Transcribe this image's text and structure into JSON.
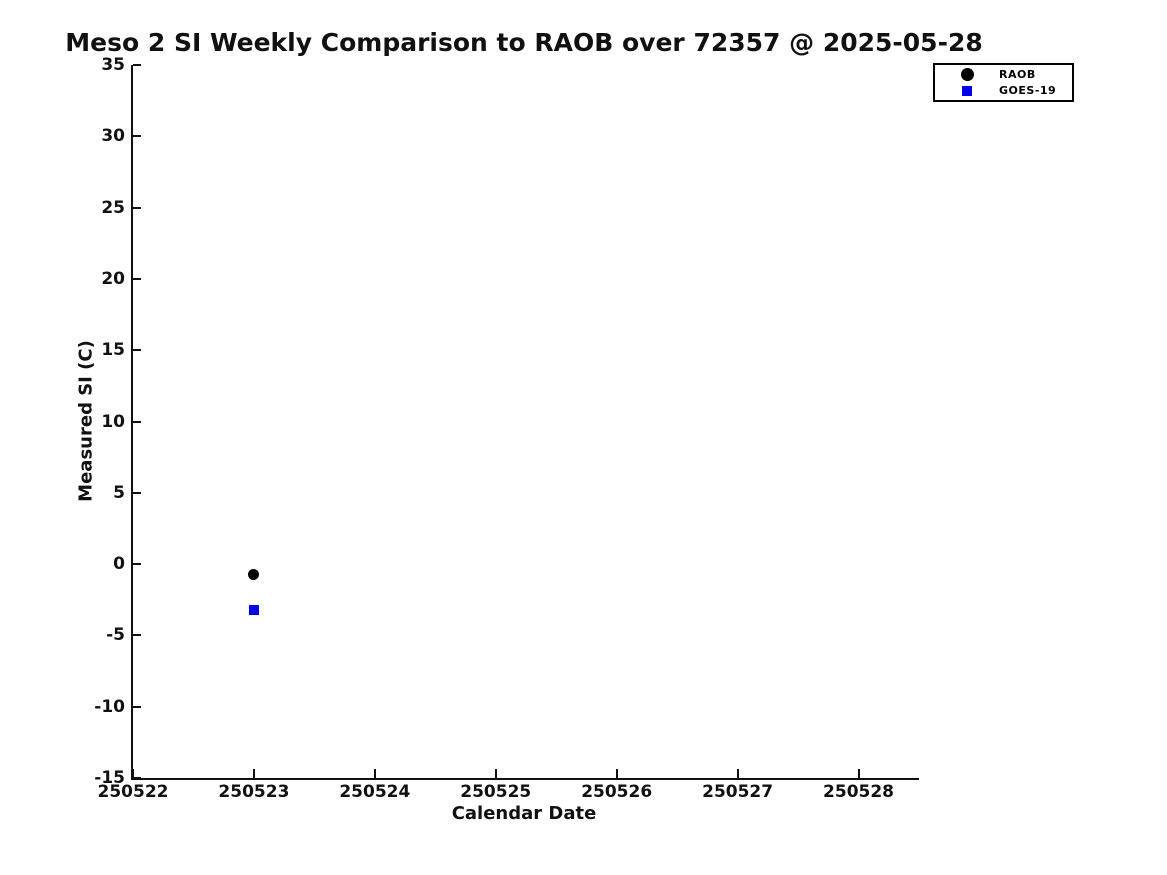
{
  "colors": {
    "background": "#ffffff",
    "axis": "#111111",
    "text": "#111111",
    "legend_border": "#000000"
  },
  "chart_data": {
    "type": "scatter",
    "title": "Meso 2 SI Weekly Comparison to RAOB over 72357 @ 2025-05-28",
    "xlabel": "Calendar Date",
    "ylabel": "Measured SI (C)",
    "x_ticks": [
      250522,
      250523,
      250524,
      250525,
      250526,
      250527,
      250528
    ],
    "xlim": [
      250522,
      250528.5
    ],
    "y_ticks": [
      35,
      30,
      25,
      20,
      15,
      10,
      5,
      0,
      -5,
      -10,
      -15
    ],
    "ylim": [
      -15,
      35
    ],
    "grid": false,
    "legend_position": "top-right-outside",
    "series": [
      {
        "name": "RAOB",
        "marker": "circle",
        "color": "#000000",
        "points": [
          {
            "x": 250523,
            "y": -0.7
          }
        ]
      },
      {
        "name": "GOES-19",
        "marker": "square",
        "color": "#0000ee",
        "points": [
          {
            "x": 250523,
            "y": -3.2
          }
        ]
      }
    ]
  }
}
